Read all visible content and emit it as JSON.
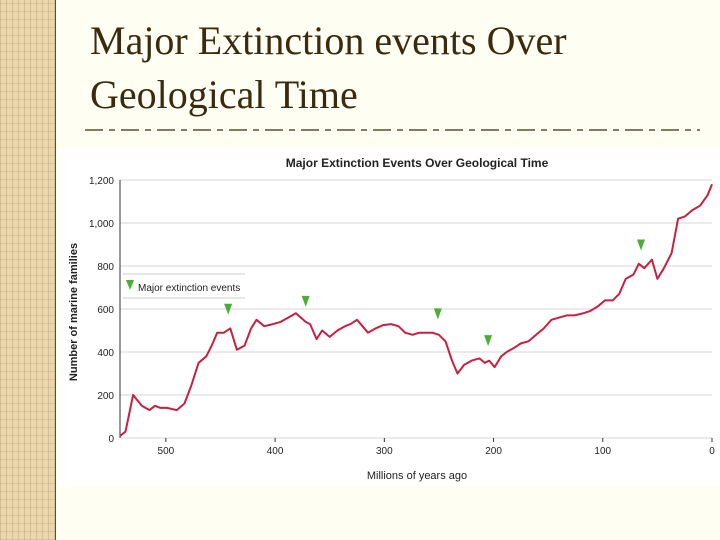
{
  "slide": {
    "title_line1": "Major Extinction events Over",
    "title_line2": "Geological Time"
  },
  "colors": {
    "background": "#fffef2",
    "title": "#3a2a12",
    "line": "#c8203f",
    "marker": "#4caf35",
    "grid": "#d7d7d7"
  },
  "chart_data": {
    "type": "line",
    "title": "Major Extinction Events Over Geological Time",
    "xlabel": "Millions of years ago",
    "ylabel": "Number of marine families",
    "xlim": [
      542,
      0
    ],
    "ylim": [
      0,
      1200
    ],
    "xticks": [
      500,
      400,
      300,
      200,
      100,
      0
    ],
    "xtick_labels": [
      "500",
      "400",
      "300",
      "200",
      "100",
      "0"
    ],
    "yticks": [
      0,
      200,
      400,
      600,
      800,
      1000,
      1200
    ],
    "ytick_labels": [
      "0",
      "200",
      "400",
      "600",
      "800",
      "1,000",
      "1,200"
    ],
    "grid": true,
    "legend": {
      "placement": "left",
      "label": "Major extinction events"
    },
    "series": [
      {
        "x": [
          542,
          537,
          530,
          522,
          515,
          510,
          505,
          499,
          490,
          483,
          477,
          470,
          463,
          458,
          453,
          447,
          441,
          435,
          428,
          422,
          417,
          410,
          402,
          395,
          388,
          381,
          372,
          368,
          362,
          357,
          350,
          343,
          336,
          331,
          325,
          320,
          315,
          308,
          301,
          294,
          287,
          281,
          274,
          268,
          261,
          256,
          250,
          244,
          238,
          233,
          227,
          220,
          213,
          208,
          204,
          199,
          193,
          188,
          181,
          175,
          168,
          161,
          154,
          147,
          140,
          133,
          126,
          118,
          112,
          105,
          98,
          91,
          85,
          79,
          72,
          67,
          62,
          55,
          50,
          44,
          37,
          31,
          25,
          18,
          11,
          4,
          0
        ],
        "y": [
          10,
          30,
          200,
          150,
          130,
          150,
          140,
          140,
          130,
          160,
          240,
          350,
          380,
          430,
          490,
          490,
          510,
          410,
          430,
          510,
          550,
          520,
          530,
          540,
          560,
          580,
          540,
          530,
          460,
          500,
          470,
          500,
          520,
          530,
          550,
          520,
          490,
          510,
          525,
          530,
          520,
          490,
          480,
          490,
          490,
          490,
          480,
          450,
          360,
          300,
          340,
          360,
          370,
          350,
          360,
          330,
          380,
          400,
          420,
          440,
          450,
          480,
          510,
          550,
          560,
          570,
          570,
          580,
          590,
          610,
          640,
          640,
          670,
          740,
          760,
          810,
          790,
          830,
          740,
          790,
          860,
          1020,
          1030,
          1060,
          1080,
          1130,
          1180
        ]
      }
    ],
    "extinction_events": [
      443,
      372,
      251,
      205,
      65
    ]
  }
}
